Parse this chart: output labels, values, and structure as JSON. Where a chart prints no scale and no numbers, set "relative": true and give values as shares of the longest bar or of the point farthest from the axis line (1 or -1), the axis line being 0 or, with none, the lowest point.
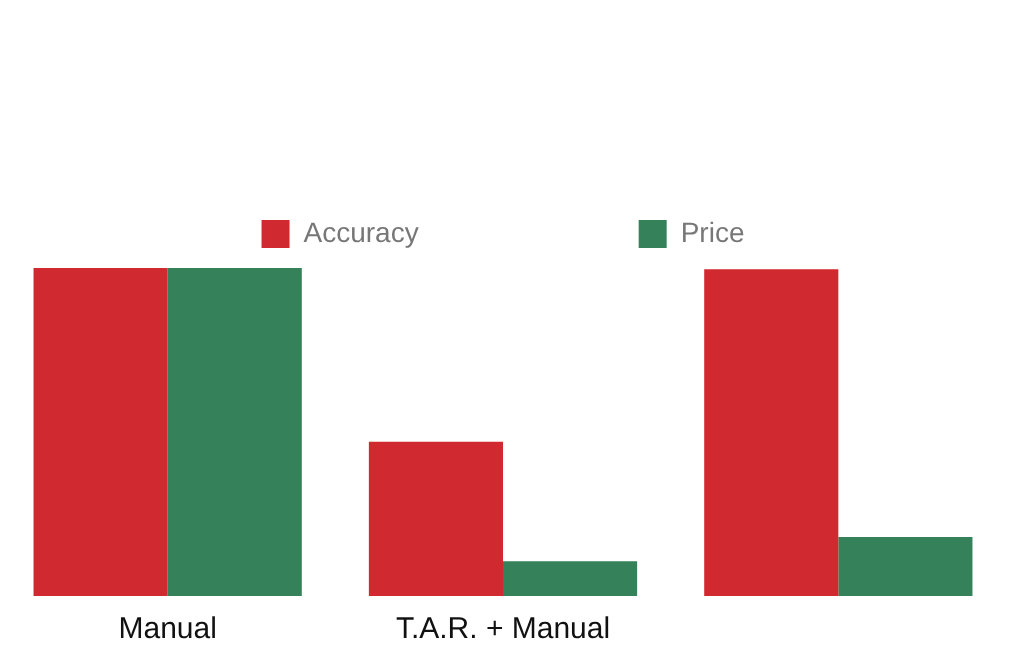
{
  "chart_data": {
    "type": "bar",
    "relative": true,
    "categories": [
      "Manual",
      "T.A.R. + Manual",
      null
    ],
    "series": [
      {
        "name": "Accuracy",
        "color": "#d0292f",
        "values": [
          1,
          0.47,
          0.996
        ]
      },
      {
        "name": "Price",
        "color": "#35815a",
        "values": [
          1,
          0.106,
          0.18
        ]
      }
    ],
    "legend": "top",
    "grid": false
  }
}
